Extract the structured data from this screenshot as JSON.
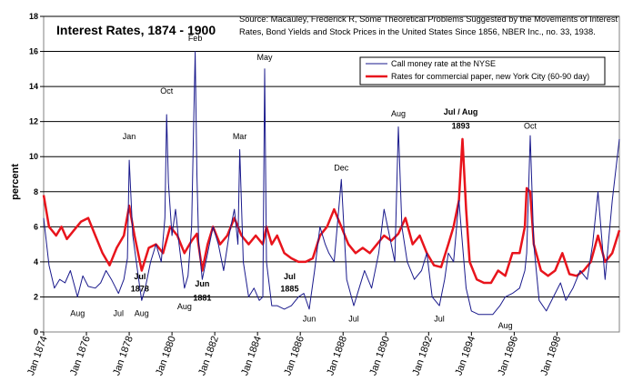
{
  "chart_data": {
    "type": "line",
    "title": "Interest Rates, 1874 - 1900",
    "source": "Source: Macauley, Frederick R, Some Theoretical Problems Suggested by the Movements of Interest Rates, Bond Yields and Stock Prices in the United States Since 1856, NBER Inc., no. 33, 1938.",
    "ylabel": "percent",
    "xlabel": "",
    "ylim": [
      0,
      18
    ],
    "yticks": [
      "0",
      "2",
      "4",
      "6",
      "8",
      "10",
      "12",
      "14",
      "16",
      "18"
    ],
    "xticks": [
      "Jan 1874",
      "Jan 1876",
      "Jan 1878",
      "Jan 1880",
      "Jan 1882",
      "Jan 1884",
      "Jan 1886",
      "Jan 1888",
      "Jan 1890",
      "Jan 1892",
      "Jan 1894",
      "Jan 1896",
      "Jan 1898"
    ],
    "xrange": [
      "1874-01",
      "1900-12"
    ],
    "grid": "horizontal",
    "legend_position": "top-right",
    "series": [
      {
        "name": "Call money rate at the NYSE",
        "color": "#1a1a8c",
        "points": [
          [
            "1874-01",
            6.5
          ],
          [
            "1874-04",
            3.8
          ],
          [
            "1874-07",
            2.5
          ],
          [
            "1874-10",
            3.0
          ],
          [
            "1875-01",
            2.8
          ],
          [
            "1875-04",
            3.5
          ],
          [
            "1875-08",
            2.0
          ],
          [
            "1875-11",
            3.2
          ],
          [
            "1876-02",
            2.6
          ],
          [
            "1876-06",
            2.5
          ],
          [
            "1876-09",
            2.8
          ],
          [
            "1876-12",
            3.5
          ],
          [
            "1877-03",
            3.0
          ],
          [
            "1877-07",
            2.2
          ],
          [
            "1877-10",
            3.0
          ],
          [
            "1877-12",
            4.2
          ],
          [
            "1878-01",
            9.8
          ],
          [
            "1878-03",
            5.5
          ],
          [
            "1878-05",
            4.0
          ],
          [
            "1878-07",
            2.5
          ],
          [
            "1878-08",
            1.8
          ],
          [
            "1878-10",
            2.5
          ],
          [
            "1879-01",
            4.0
          ],
          [
            "1879-04",
            5.0
          ],
          [
            "1879-07",
            4.0
          ],
          [
            "1879-09",
            6.5
          ],
          [
            "1879-10",
            12.4
          ],
          [
            "1879-11",
            8.5
          ],
          [
            "1880-01",
            5.5
          ],
          [
            "1880-03",
            7.0
          ],
          [
            "1880-05",
            5.0
          ],
          [
            "1880-08",
            2.5
          ],
          [
            "1880-10",
            3.2
          ],
          [
            "1880-12",
            6.0
          ],
          [
            "1881-01",
            11.0
          ],
          [
            "1881-02",
            16.0
          ],
          [
            "1881-03",
            9.0
          ],
          [
            "1881-04",
            5.0
          ],
          [
            "1881-06",
            3.0
          ],
          [
            "1881-09",
            4.5
          ],
          [
            "1881-12",
            6.0
          ],
          [
            "1882-03",
            5.0
          ],
          [
            "1882-06",
            3.5
          ],
          [
            "1882-09",
            5.5
          ],
          [
            "1882-12",
            7.0
          ],
          [
            "1883-02",
            5.0
          ],
          [
            "1883-03",
            10.4
          ],
          [
            "1883-05",
            4.0
          ],
          [
            "1883-08",
            2.0
          ],
          [
            "1883-11",
            2.5
          ],
          [
            "1884-02",
            1.8
          ],
          [
            "1884-04",
            2.0
          ],
          [
            "1884-05",
            15.0
          ],
          [
            "1884-06",
            4.0
          ],
          [
            "1884-09",
            1.5
          ],
          [
            "1884-12",
            1.5
          ],
          [
            "1885-04",
            1.3
          ],
          [
            "1885-08",
            1.5
          ],
          [
            "1885-12",
            2.0
          ],
          [
            "1886-03",
            2.2
          ],
          [
            "1886-06",
            1.3
          ],
          [
            "1886-09",
            3.5
          ],
          [
            "1886-12",
            6.0
          ],
          [
            "1887-03",
            5.0
          ],
          [
            "1887-05",
            4.5
          ],
          [
            "1887-08",
            4.0
          ],
          [
            "1887-12",
            8.7
          ],
          [
            "1888-03",
            3.0
          ],
          [
            "1888-07",
            1.5
          ],
          [
            "1888-10",
            2.5
          ],
          [
            "1889-01",
            3.5
          ],
          [
            "1889-05",
            2.5
          ],
          [
            "1889-09",
            4.5
          ],
          [
            "1889-12",
            7.0
          ],
          [
            "1890-03",
            5.5
          ],
          [
            "1890-06",
            4.0
          ],
          [
            "1890-08",
            11.7
          ],
          [
            "1890-10",
            6.0
          ],
          [
            "1891-01",
            4.0
          ],
          [
            "1891-05",
            3.0
          ],
          [
            "1891-09",
            3.5
          ],
          [
            "1891-12",
            4.5
          ],
          [
            "1892-03",
            2.0
          ],
          [
            "1892-07",
            1.5
          ],
          [
            "1892-10",
            3.0
          ],
          [
            "1892-12",
            4.5
          ],
          [
            "1893-03",
            4.0
          ],
          [
            "1893-06",
            7.5
          ],
          [
            "1893-08",
            5.0
          ],
          [
            "1893-10",
            2.5
          ],
          [
            "1894-01",
            1.2
          ],
          [
            "1894-05",
            1.0
          ],
          [
            "1894-09",
            1.0
          ],
          [
            "1895-01",
            1.0
          ],
          [
            "1895-05",
            1.5
          ],
          [
            "1895-08",
            2.0
          ],
          [
            "1895-12",
            2.2
          ],
          [
            "1896-04",
            2.5
          ],
          [
            "1896-07",
            3.5
          ],
          [
            "1896-08",
            4.5
          ],
          [
            "1896-10",
            11.2
          ],
          [
            "1896-12",
            5.0
          ],
          [
            "1897-03",
            1.8
          ],
          [
            "1897-07",
            1.2
          ],
          [
            "1897-11",
            2.0
          ],
          [
            "1898-03",
            2.8
          ],
          [
            "1898-06",
            1.8
          ],
          [
            "1898-10",
            2.5
          ],
          [
            "1899-02",
            3.5
          ],
          [
            "1899-06",
            3.0
          ],
          [
            "1899-09",
            5.0
          ],
          [
            "1899-12",
            8.0
          ],
          [
            "1900-04",
            3.0
          ],
          [
            "1900-08",
            7.5
          ],
          [
            "1900-12",
            11.0
          ]
        ]
      },
      {
        "name": "Rates for commercial paper, new York City (60-90 day)",
        "color": "#e8141c",
        "points": [
          [
            "1874-01",
            7.8
          ],
          [
            "1874-04",
            6.0
          ],
          [
            "1874-08",
            5.5
          ],
          [
            "1874-11",
            6.0
          ],
          [
            "1875-02",
            5.3
          ],
          [
            "1875-06",
            5.8
          ],
          [
            "1875-10",
            6.3
          ],
          [
            "1876-02",
            6.5
          ],
          [
            "1876-06",
            5.5
          ],
          [
            "1876-10",
            4.5
          ],
          [
            "1877-02",
            3.8
          ],
          [
            "1877-06",
            4.8
          ],
          [
            "1877-10",
            5.5
          ],
          [
            "1878-01",
            7.2
          ],
          [
            "1878-04",
            5.5
          ],
          [
            "1878-08",
            3.5
          ],
          [
            "1878-12",
            4.8
          ],
          [
            "1879-04",
            5.0
          ],
          [
            "1879-08",
            4.5
          ],
          [
            "1879-12",
            6.0
          ],
          [
            "1880-04",
            5.5
          ],
          [
            "1880-08",
            4.5
          ],
          [
            "1880-12",
            5.2
          ],
          [
            "1881-03",
            5.6
          ],
          [
            "1881-06",
            3.5
          ],
          [
            "1881-09",
            5.0
          ],
          [
            "1881-12",
            6.0
          ],
          [
            "1882-04",
            5.0
          ],
          [
            "1882-08",
            5.5
          ],
          [
            "1882-12",
            6.5
          ],
          [
            "1883-04",
            5.5
          ],
          [
            "1883-08",
            5.0
          ],
          [
            "1883-12",
            5.5
          ],
          [
            "1884-04",
            5.0
          ],
          [
            "1884-06",
            6.0
          ],
          [
            "1884-09",
            5.0
          ],
          [
            "1884-12",
            5.5
          ],
          [
            "1885-04",
            4.5
          ],
          [
            "1885-08",
            4.2
          ],
          [
            "1885-12",
            4.0
          ],
          [
            "1886-04",
            4.0
          ],
          [
            "1886-08",
            4.2
          ],
          [
            "1886-12",
            5.5
          ],
          [
            "1887-04",
            6.0
          ],
          [
            "1887-08",
            7.0
          ],
          [
            "1887-12",
            6.0
          ],
          [
            "1888-04",
            5.0
          ],
          [
            "1888-08",
            4.5
          ],
          [
            "1888-12",
            4.8
          ],
          [
            "1889-04",
            4.5
          ],
          [
            "1889-08",
            5.0
          ],
          [
            "1889-12",
            5.5
          ],
          [
            "1890-04",
            5.2
          ],
          [
            "1890-08",
            5.6
          ],
          [
            "1890-12",
            6.5
          ],
          [
            "1891-04",
            5.0
          ],
          [
            "1891-08",
            5.5
          ],
          [
            "1891-12",
            4.5
          ],
          [
            "1892-04",
            3.8
          ],
          [
            "1892-08",
            3.7
          ],
          [
            "1892-12",
            5.0
          ],
          [
            "1893-03",
            6.0
          ],
          [
            "1893-06",
            7.5
          ],
          [
            "1893-08",
            11.0
          ],
          [
            "1893-10",
            7.0
          ],
          [
            "1893-12",
            4.0
          ],
          [
            "1894-04",
            3.0
          ],
          [
            "1894-08",
            2.8
          ],
          [
            "1894-12",
            2.8
          ],
          [
            "1895-04",
            3.5
          ],
          [
            "1895-08",
            3.2
          ],
          [
            "1895-12",
            4.5
          ],
          [
            "1896-04",
            4.5
          ],
          [
            "1896-07",
            6.0
          ],
          [
            "1896-08",
            8.2
          ],
          [
            "1896-10",
            8.0
          ],
          [
            "1896-12",
            5.0
          ],
          [
            "1897-04",
            3.5
          ],
          [
            "1897-08",
            3.2
          ],
          [
            "1897-12",
            3.5
          ],
          [
            "1898-04",
            4.5
          ],
          [
            "1898-08",
            3.3
          ],
          [
            "1898-12",
            3.2
          ],
          [
            "1899-04",
            3.5
          ],
          [
            "1899-08",
            4.0
          ],
          [
            "1899-12",
            5.5
          ],
          [
            "1900-04",
            4.0
          ],
          [
            "1900-08",
            4.5
          ],
          [
            "1900-12",
            5.8
          ]
        ]
      }
    ],
    "annotations": [
      {
        "text": "Jan",
        "x": "1878-01",
        "y": 11.0,
        "bold": false
      },
      {
        "text": "Oct",
        "x": "1879-10",
        "y": 13.6,
        "bold": false
      },
      {
        "text": "Feb",
        "x": "1881-02",
        "y": 16.6,
        "bold": false
      },
      {
        "text": "Mar",
        "x": "1883-03",
        "y": 11.0,
        "bold": false
      },
      {
        "text": "May",
        "x": "1884-05",
        "y": 15.5,
        "bold": false
      },
      {
        "text": "Dec",
        "x": "1887-12",
        "y": 9.2,
        "bold": false
      },
      {
        "text": "Aug",
        "x": "1890-08",
        "y": 12.3,
        "bold": false
      },
      {
        "text": "Oct",
        "x": "1896-10",
        "y": 11.6,
        "bold": false
      },
      {
        "text": "Jul / Aug",
        "x": "1893-07",
        "y": 12.4,
        "bold": true
      },
      {
        "text": "1893",
        "x": "1893-07",
        "y": 11.6,
        "bold": true
      },
      {
        "text": "Jul",
        "x": "1878-07",
        "y": 3.0,
        "bold": true
      },
      {
        "text": "1878",
        "x": "1878-07",
        "y": 2.3,
        "bold": true
      },
      {
        "text": "Jun",
        "x": "1881-06",
        "y": 2.6,
        "bold": true
      },
      {
        "text": "1881",
        "x": "1881-06",
        "y": 1.8,
        "bold": true
      },
      {
        "text": "Jul",
        "x": "1885-07",
        "y": 3.0,
        "bold": true
      },
      {
        "text": "1885",
        "x": "1885-07",
        "y": 2.3,
        "bold": true
      },
      {
        "text": "Aug",
        "x": "1875-08",
        "y": 0.9,
        "bold": false
      },
      {
        "text": "Jul",
        "x": "1877-07",
        "y": 0.9,
        "bold": false
      },
      {
        "text": "Aug",
        "x": "1878-08",
        "y": 0.9,
        "bold": false
      },
      {
        "text": "Aug",
        "x": "1880-08",
        "y": 1.3,
        "bold": false
      },
      {
        "text": "Jun",
        "x": "1886-06",
        "y": 0.6,
        "bold": false
      },
      {
        "text": "Jul",
        "x": "1888-07",
        "y": 0.6,
        "bold": false
      },
      {
        "text": "Jul",
        "x": "1892-07",
        "y": 0.6,
        "bold": false
      },
      {
        "text": "Aug",
        "x": "1895-08",
        "y": 0.2,
        "bold": false
      }
    ]
  }
}
